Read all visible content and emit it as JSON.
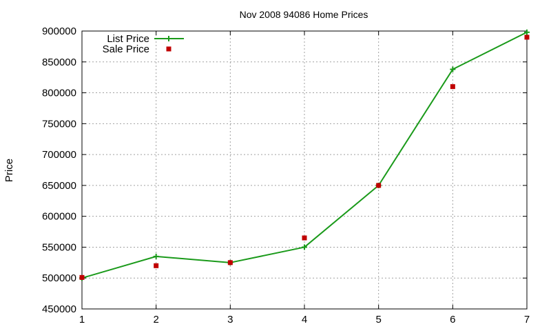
{
  "chart_data": {
    "type": "line",
    "title": "Nov 2008 94086 Home Prices",
    "xlabel": "",
    "ylabel": "Price",
    "xlim": [
      1,
      7
    ],
    "ylim": [
      450000,
      900000
    ],
    "x_ticks": [
      "1",
      "2",
      "3",
      "4",
      "5",
      "6",
      "7"
    ],
    "y_ticks": [
      "450000",
      "500000",
      "550000",
      "600000",
      "650000",
      "700000",
      "750000",
      "800000",
      "850000",
      "900000"
    ],
    "grid": true,
    "legend_position": "top-left",
    "series": [
      {
        "name": "List Price",
        "style": "line-with-plus-markers",
        "color": "#1a9a1a",
        "points": [
          {
            "x": 1,
            "y": 500000
          },
          {
            "x": 2,
            "y": 535000
          },
          {
            "x": 3,
            "y": 525000
          },
          {
            "x": 4,
            "y": 550000
          },
          {
            "x": 5,
            "y": 650000
          },
          {
            "x": 6,
            "y": 838000
          },
          {
            "x": 7,
            "y": 898000
          }
        ]
      },
      {
        "name": "Sale Price",
        "style": "square-markers",
        "color": "#c00000",
        "points": [
          {
            "x": 1,
            "y": 501000
          },
          {
            "x": 2,
            "y": 520000
          },
          {
            "x": 3,
            "y": 525000
          },
          {
            "x": 4,
            "y": 565000
          },
          {
            "x": 5,
            "y": 650000
          },
          {
            "x": 6,
            "y": 810000
          },
          {
            "x": 7,
            "y": 890000
          }
        ]
      }
    ]
  }
}
